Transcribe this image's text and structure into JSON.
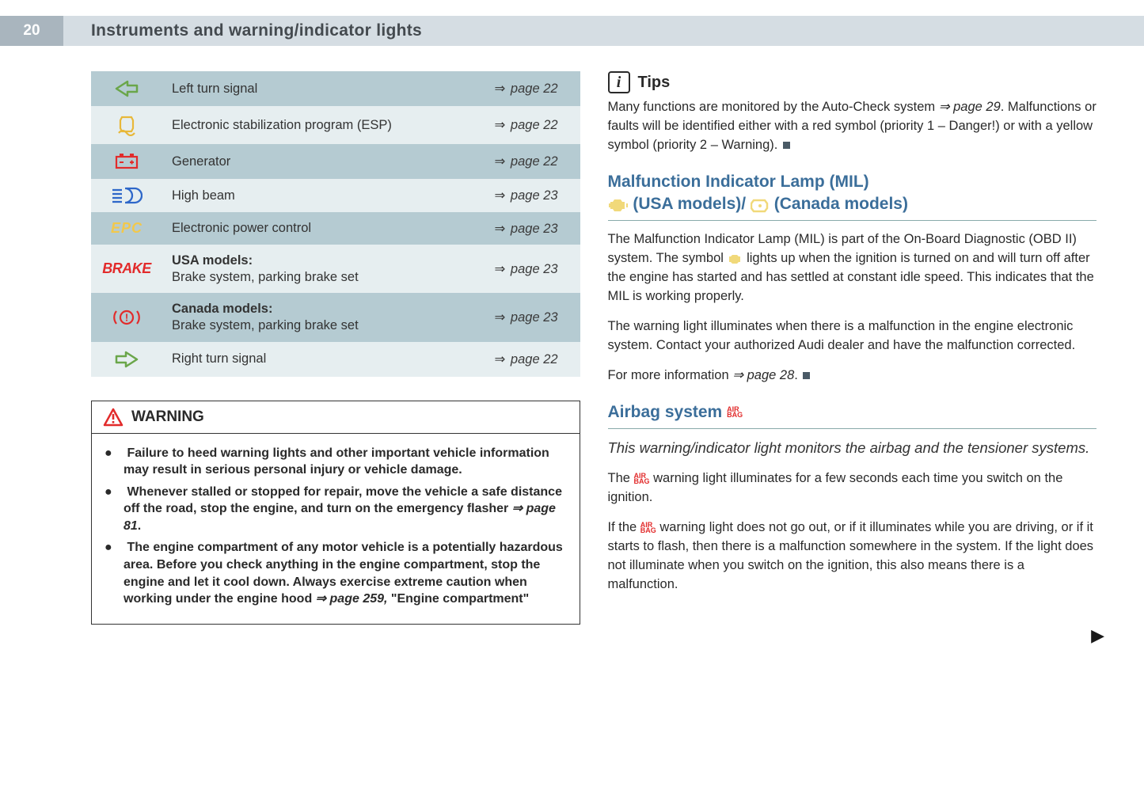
{
  "page_number": "20",
  "header_title": "Instruments and warning/indicator lights",
  "colors": {
    "row_dark": "#b5cbd2",
    "row_light": "#e6eef0",
    "header_bar": "#d5dde3",
    "page_box": "#a9b5be",
    "section_title": "#3b6e9a",
    "brake_red": "#e22b2b",
    "epc_yellow": "#f2c84b",
    "icon_green": "#6aa64a",
    "icon_yellow": "#e8b83a",
    "icon_blue": "#2e67c9",
    "icon_red": "#e22b2b"
  },
  "indicator_table": {
    "rows": [
      {
        "icon": "left-arrow",
        "label": "Left turn signal",
        "page": "page 22",
        "shade": "a"
      },
      {
        "icon": "esp",
        "label": "Electronic stabilization program (ESP)",
        "page": "page 22",
        "shade": "b"
      },
      {
        "icon": "battery",
        "label": "Generator",
        "page": "page 22",
        "shade": "a"
      },
      {
        "icon": "high-beam",
        "label": "High beam",
        "page": "page 23",
        "shade": "b"
      },
      {
        "icon": "epc",
        "label": "Electronic power control",
        "page": "page 23",
        "shade": "a"
      },
      {
        "icon": "brake-text",
        "label_bold": "USA models:",
        "label": "Brake system, parking brake set",
        "page": "page 23",
        "shade": "b"
      },
      {
        "icon": "brake-circ",
        "label_bold": "Canada models:",
        "label": "Brake system, parking brake set",
        "page": "page 23",
        "shade": "a"
      },
      {
        "icon": "right-arrow",
        "label": "Right turn signal",
        "page": "page 22",
        "shade": "b"
      }
    ]
  },
  "warning_box": {
    "title": "WARNING",
    "bullets": [
      {
        "text": "Failure to heed warning lights and other important vehicle information may result in serious personal injury or vehicle damage."
      },
      {
        "text": "Whenever stalled or stopped for repair, move the vehicle a safe distance off the road, stop the engine, and turn on the emergency flasher ",
        "page_ref": "⇒ page 81",
        "after": "."
      },
      {
        "text": "The engine compartment of any motor vehicle is a potentially hazardous area. Before you check anything in the engine compartment, stop the engine and let it cool down. Always exercise extreme caution when working under the engine hood ",
        "page_ref": "⇒ page 259,",
        "after": " \"Engine compartment\""
      }
    ]
  },
  "tips": {
    "title": "Tips",
    "body_pre": "Many functions are monitored by the Auto-Check system ",
    "body_ref": "⇒ page 29",
    "body_post": ". Malfunctions or faults will be identified either with a red symbol (priority 1 – Danger!) or with a yellow symbol (priority 2 – Warning)."
  },
  "mil_section": {
    "title_line1": "Malfunction Indicator Lamp (MIL)",
    "title_line2a": "(USA models)/",
    "title_line2b": "(Canada models)",
    "para1_pre": "The Malfunction Indicator Lamp (MIL) is part of the On-Board Diagnostic (OBD II) system. The symbol ",
    "para1_post": " lights up when the ignition is turned on and will turn off after the engine has started and has settled at constant idle speed. This indicates that the MIL is working properly.",
    "para2": "The warning light illuminates when there is a malfunction in the engine electronic system. Contact your authorized Audi dealer and have the malfunction corrected.",
    "para3_pre": "For more information ",
    "para3_ref": "⇒ page 28",
    "para3_post": "."
  },
  "airbag_section": {
    "title": "Airbag system",
    "subtitle": "This warning/indicator light monitors the airbag and the tensioner systems.",
    "para1_pre": "The ",
    "para1_post": " warning light illuminates for a few seconds each time you switch on the ignition.",
    "para2_pre": "If the ",
    "para2_post": " warning light does not go out, or if it illuminates while you are driving, or if it starts to flash, then there is a malfunction somewhere in the system. If the light does not illuminate when you switch on the ignition, this also means there is a malfunction.",
    "airbag_icon_text": "AIR\nBAG"
  }
}
